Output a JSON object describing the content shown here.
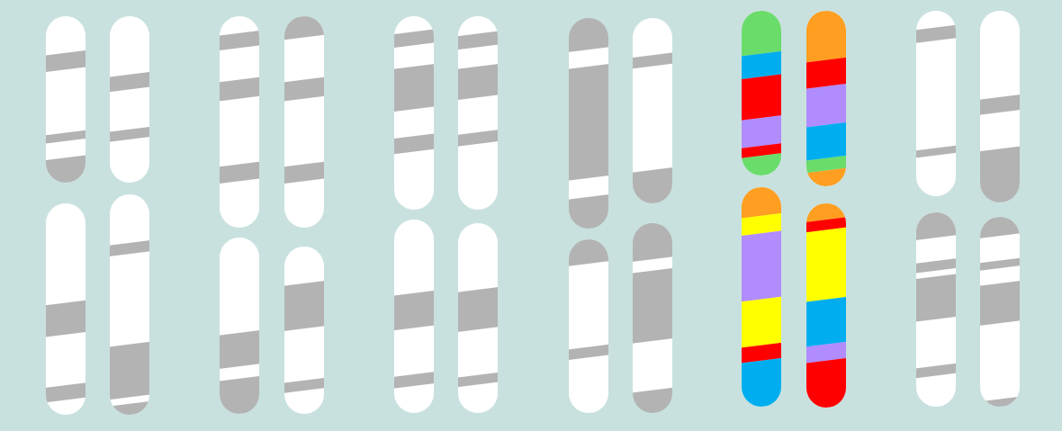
{
  "colors": {
    "background": "#c8e1df",
    "chromosome": "#ffffff",
    "band_gray": "#b3b3b3",
    "green": "#6adc6a",
    "blue": "#00aeef",
    "red": "#ff0000",
    "purple": "#b08cff",
    "orange": "#ff9e20",
    "yellow": "#ffff00"
  },
  "chromosomes": [
    {
      "id": "g1-top-a",
      "fill": "white",
      "bands": [
        {
          "from": 0.22,
          "to": 0.32,
          "color": "band_gray"
        },
        {
          "from": 0.7,
          "to": 0.75,
          "color": "band_gray"
        },
        {
          "from": 0.85,
          "to": 1.0,
          "color": "band_gray"
        }
      ]
    },
    {
      "id": "g1-top-b",
      "fill": "white",
      "bands": [
        {
          "from": 0.35,
          "to": 0.44,
          "color": "band_gray"
        },
        {
          "from": 0.68,
          "to": 0.74,
          "color": "band_gray"
        }
      ]
    },
    {
      "id": "g1-bottom-a",
      "fill": "white",
      "bands": [
        {
          "from": 0.47,
          "to": 0.62,
          "color": "band_gray"
        },
        {
          "from": 0.86,
          "to": 0.93,
          "color": "band_gray"
        }
      ]
    },
    {
      "id": "g1-bottom-b",
      "fill": "white",
      "bands": [
        {
          "from": 0.22,
          "to": 0.27,
          "color": "band_gray"
        },
        {
          "from": 0.68,
          "to": 0.92,
          "color": "band_gray"
        },
        {
          "from": 0.95,
          "to": 1.0,
          "color": "band_gray"
        }
      ]
    },
    {
      "id": "g2-top-a",
      "fill": "white",
      "bands": [
        {
          "from": 0.08,
          "to": 0.15,
          "color": "band_gray"
        },
        {
          "from": 0.3,
          "to": 0.39,
          "color": "band_gray"
        },
        {
          "from": 0.7,
          "to": 0.78,
          "color": "band_gray"
        }
      ]
    },
    {
      "id": "g2-top-b",
      "fill": "white",
      "bands": [
        {
          "from": 0.0,
          "to": 0.1,
          "color": "band_gray"
        },
        {
          "from": 0.3,
          "to": 0.39,
          "color": "band_gray"
        },
        {
          "from": 0.7,
          "to": 0.78,
          "color": "band_gray"
        }
      ]
    },
    {
      "id": "g2-bottom-a",
      "fill": "white",
      "bands": [
        {
          "from": 0.54,
          "to": 0.73,
          "color": "band_gray"
        },
        {
          "from": 0.8,
          "to": 1.0,
          "color": "band_gray"
        }
      ]
    },
    {
      "id": "g2-bottom-b",
      "fill": "white",
      "bands": [
        {
          "from": 0.22,
          "to": 0.49,
          "color": "band_gray"
        },
        {
          "from": 0.8,
          "to": 0.86,
          "color": "band_gray"
        }
      ]
    },
    {
      "id": "g3-top-a",
      "fill": "white",
      "bands": [
        {
          "from": 0.08,
          "to": 0.15,
          "color": "band_gray"
        },
        {
          "from": 0.26,
          "to": 0.48,
          "color": "band_gray"
        },
        {
          "from": 0.62,
          "to": 0.7,
          "color": "band_gray"
        }
      ]
    },
    {
      "id": "g3-top-b",
      "fill": "white",
      "bands": [
        {
          "from": 0.09,
          "to": 0.16,
          "color": "band_gray"
        },
        {
          "from": 0.26,
          "to": 0.42,
          "color": "band_gray"
        },
        {
          "from": 0.6,
          "to": 0.66,
          "color": "band_gray"
        }
      ]
    },
    {
      "id": "g3-bottom-a",
      "fill": "white",
      "bands": [
        {
          "from": 0.38,
          "to": 0.56,
          "color": "band_gray"
        },
        {
          "from": 0.8,
          "to": 0.86,
          "color": "band_gray"
        }
      ]
    },
    {
      "id": "g3-bottom-b",
      "fill": "white",
      "bands": [
        {
          "from": 0.35,
          "to": 0.56,
          "color": "band_gray"
        },
        {
          "from": 0.8,
          "to": 0.85,
          "color": "band_gray"
        }
      ]
    },
    {
      "id": "g4-top-a",
      "fill": "band_gray",
      "bands": [
        {
          "from": 0.15,
          "to": 0.23,
          "color": "chromosome"
        },
        {
          "from": 0.76,
          "to": 0.85,
          "color": "chromosome"
        }
      ]
    },
    {
      "id": "g4-top-b",
      "fill": "white",
      "bands": [
        {
          "from": 0.2,
          "to": 0.26,
          "color": "band_gray"
        },
        {
          "from": 0.82,
          "to": 1.0,
          "color": "band_gray"
        }
      ]
    },
    {
      "id": "g4-bottom-a",
      "fill": "white",
      "bands": [
        {
          "from": 0.0,
          "to": 0.14,
          "color": "band_gray"
        },
        {
          "from": 0.62,
          "to": 0.68,
          "color": "band_gray"
        }
      ]
    },
    {
      "id": "g4-bottom-b",
      "fill": "band_gray",
      "bands": [
        {
          "from": 0.19,
          "to": 0.25,
          "color": "chromosome"
        },
        {
          "from": 0.62,
          "to": 0.88,
          "color": "chromosome"
        }
      ]
    },
    {
      "id": "g5-top-a",
      "fill": "white",
      "bands": [
        {
          "from": 0.0,
          "to": 0.26,
          "color": "green"
        },
        {
          "from": 0.26,
          "to": 0.4,
          "color": "blue"
        },
        {
          "from": 0.4,
          "to": 0.65,
          "color": "red"
        },
        {
          "from": 0.65,
          "to": 0.82,
          "color": "purple"
        },
        {
          "from": 0.82,
          "to": 0.88,
          "color": "red"
        },
        {
          "from": 0.88,
          "to": 1.0,
          "color": "green"
        }
      ]
    },
    {
      "id": "g5-top-b",
      "fill": "white",
      "bands": [
        {
          "from": 0.0,
          "to": 0.28,
          "color": "orange"
        },
        {
          "from": 0.28,
          "to": 0.43,
          "color": "red"
        },
        {
          "from": 0.43,
          "to": 0.65,
          "color": "purple"
        },
        {
          "from": 0.65,
          "to": 0.84,
          "color": "blue"
        },
        {
          "from": 0.84,
          "to": 0.91,
          "color": "green"
        },
        {
          "from": 0.91,
          "to": 1.0,
          "color": "orange"
        }
      ]
    },
    {
      "id": "g5-bottom-a",
      "fill": "white",
      "bands": [
        {
          "from": 0.0,
          "to": 0.13,
          "color": "orange"
        },
        {
          "from": 0.13,
          "to": 0.21,
          "color": "yellow"
        },
        {
          "from": 0.21,
          "to": 0.51,
          "color": "purple"
        },
        {
          "from": 0.51,
          "to": 0.72,
          "color": "yellow"
        },
        {
          "from": 0.72,
          "to": 0.79,
          "color": "red"
        },
        {
          "from": 0.79,
          "to": 1.0,
          "color": "blue"
        }
      ]
    },
    {
      "id": "g5-bottom-b",
      "fill": "white",
      "bands": [
        {
          "from": 0.0,
          "to": 0.08,
          "color": "orange"
        },
        {
          "from": 0.08,
          "to": 0.13,
          "color": "red"
        },
        {
          "from": 0.13,
          "to": 0.47,
          "color": "yellow"
        },
        {
          "from": 0.47,
          "to": 0.69,
          "color": "blue"
        },
        {
          "from": 0.69,
          "to": 0.77,
          "color": "purple"
        },
        {
          "from": 0.77,
          "to": 1.0,
          "color": "red"
        }
      ]
    },
    {
      "id": "g6-top-a",
      "fill": "white",
      "bands": [
        {
          "from": 0.09,
          "to": 0.16,
          "color": "band_gray"
        },
        {
          "from": 0.74,
          "to": 0.78,
          "color": "band_gray"
        }
      ]
    },
    {
      "id": "g6-top-b",
      "fill": "white",
      "bands": [
        {
          "from": 0.45,
          "to": 0.53,
          "color": "band_gray"
        },
        {
          "from": 0.72,
          "to": 1.0,
          "color": "band_gray"
        }
      ]
    },
    {
      "id": "g6-bottom-a",
      "fill": "white",
      "bands": [
        {
          "from": 0.0,
          "to": 0.13,
          "color": "band_gray"
        },
        {
          "from": 0.25,
          "to": 0.3,
          "color": "band_gray"
        },
        {
          "from": 0.33,
          "to": 0.55,
          "color": "band_gray"
        },
        {
          "from": 0.79,
          "to": 0.84,
          "color": "band_gray"
        }
      ]
    },
    {
      "id": "g6-bottom-b",
      "fill": "white",
      "bands": [
        {
          "from": 0.0,
          "to": 0.1,
          "color": "band_gray"
        },
        {
          "from": 0.23,
          "to": 0.27,
          "color": "band_gray"
        },
        {
          "from": 0.35,
          "to": 0.56,
          "color": "band_gray"
        },
        {
          "from": 0.96,
          "to": 1.0,
          "color": "band_gray"
        }
      ]
    }
  ]
}
